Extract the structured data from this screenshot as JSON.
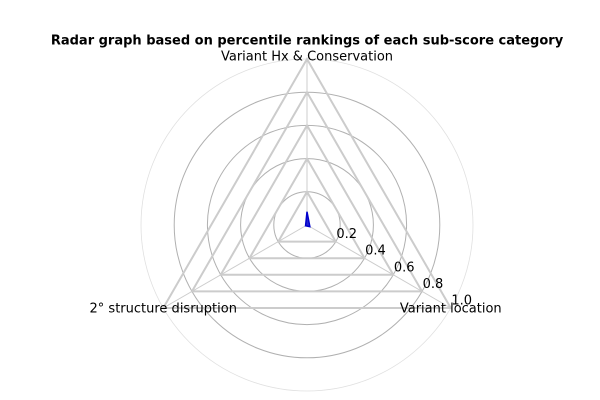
{
  "chart_data": {
    "type": "radar",
    "title": "Radar graph based on percentile rankings of each sub-score category",
    "categories": [
      "Variant Hx & Conservation",
      "2° structure disruption",
      "Variant location"
    ],
    "series": [
      {
        "color": "#0000cc",
        "values": [
          0.08,
          0.01,
          0.02
        ]
      }
    ],
    "ylim": [
      0,
      1
    ],
    "yticks": [
      0.2,
      0.4,
      0.6,
      0.8,
      {
        "value": 1,
        "label": "1.0"
      }
    ],
    "grid": true
  }
}
